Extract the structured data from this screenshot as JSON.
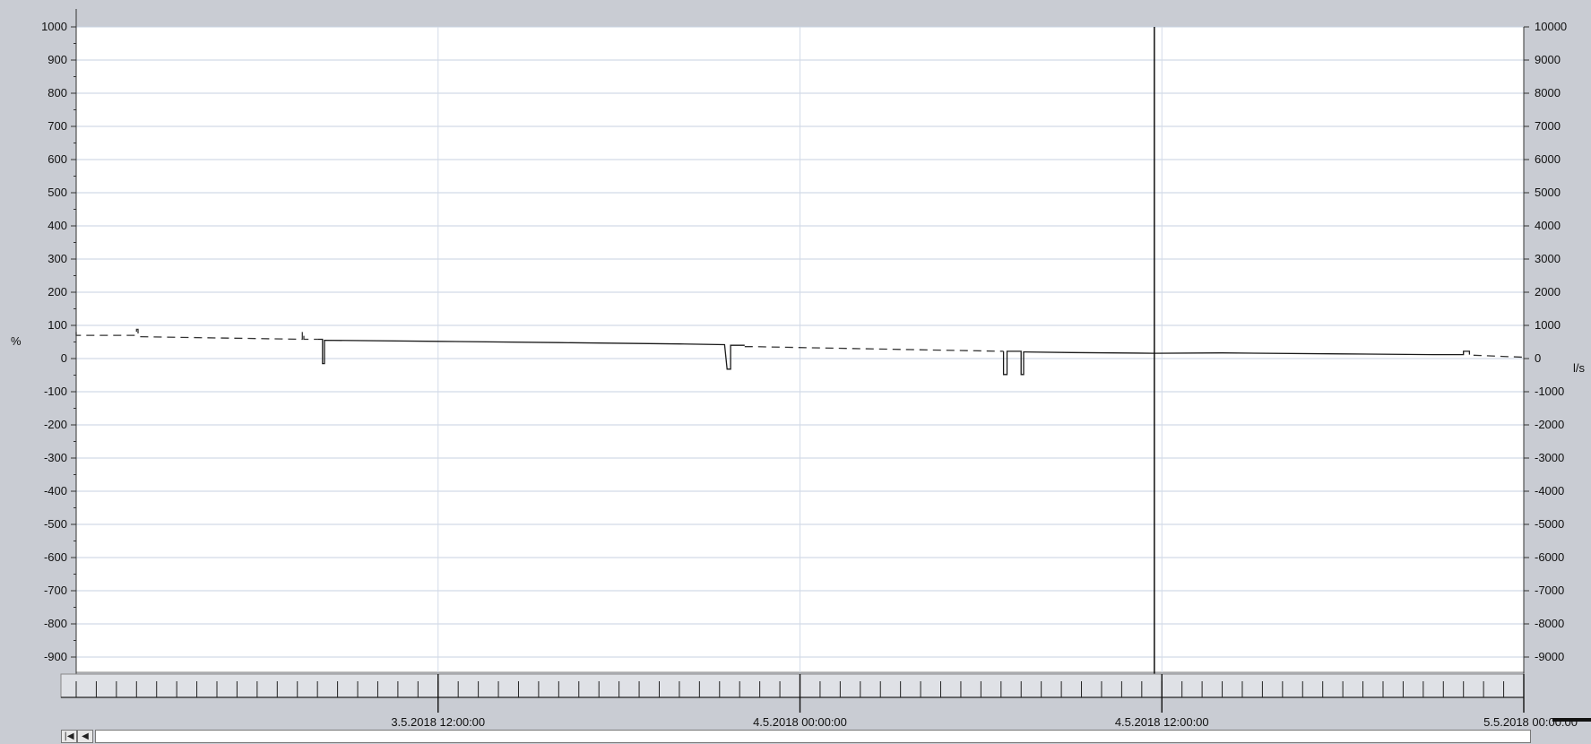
{
  "chart_data": {
    "type": "line",
    "title": "",
    "x_range": [
      "3.5.2018 00:00:00",
      "5.5.2018 00:00:00"
    ],
    "x_ticks": [
      "3.5.2018 12:00:00",
      "4.5.2018 00:00:00",
      "4.5.2018 12:00:00",
      "5.5.2018 00:00:00"
    ],
    "cursor_x": "4.5.2018 11:45:00",
    "y_left": {
      "label": "%",
      "range": [
        -1000,
        1000
      ],
      "ticks": [
        1000,
        900,
        800,
        700,
        600,
        500,
        400,
        300,
        200,
        100,
        0,
        -100,
        -200,
        -300,
        -400,
        -500,
        -600,
        -700,
        -800,
        -900
      ]
    },
    "y_right": {
      "label": "l/s",
      "range": [
        -10000,
        10000
      ],
      "ticks": [
        10000,
        9000,
        8000,
        7000,
        6000,
        5000,
        4000,
        3000,
        2000,
        1000,
        0,
        -1000,
        -2000,
        -3000,
        -4000,
        -5000,
        -6000,
        -7000,
        -8000,
        -9000
      ]
    },
    "grid": true,
    "series": [
      {
        "axis": "left",
        "style": "solid",
        "color": "#1a1a1a",
        "points": [
          [
            "3.5.2018 08:00:00",
            58
          ],
          [
            "3.5.2018 08:10:00",
            58
          ],
          [
            "3.5.2018 08:10:00",
            -15
          ],
          [
            "3.5.2018 08:14:00",
            -15
          ],
          [
            "3.5.2018 08:14:00",
            55
          ],
          [
            "3.5.2018 12:00:00",
            52
          ],
          [
            "3.5.2018 16:00:00",
            48
          ],
          [
            "3.5.2018 20:00:00",
            44
          ],
          [
            "3.5.2018 21:30:00",
            42
          ],
          [
            "3.5.2018 21:35:00",
            -32
          ],
          [
            "3.5.2018 21:42:00",
            -32
          ],
          [
            "3.5.2018 21:42:00",
            40
          ],
          [
            "3.5.2018 22:10:00",
            40
          ]
        ]
      },
      {
        "axis": "left",
        "style": "solid",
        "color": "#1a1a1a",
        "points": [
          [
            "4.5.2018 06:45:00",
            22
          ],
          [
            "4.5.2018 06:45:00",
            -48
          ],
          [
            "4.5.2018 06:52:00",
            -48
          ],
          [
            "4.5.2018 06:52:00",
            22
          ],
          [
            "4.5.2018 07:20:00",
            22
          ],
          [
            "4.5.2018 07:20:00",
            -48
          ],
          [
            "4.5.2018 07:25:00",
            -48
          ],
          [
            "4.5.2018 07:25:00",
            20
          ],
          [
            "4.5.2018 09:00:00",
            18
          ],
          [
            "4.5.2018 11:45:00",
            16
          ],
          [
            "4.5.2018 14:00:00",
            17
          ],
          [
            "4.5.2018 18:00:00",
            14
          ],
          [
            "4.5.2018 21:00:00",
            12
          ],
          [
            "4.5.2018 22:00:00",
            12
          ],
          [
            "4.5.2018 22:00:00",
            22
          ],
          [
            "4.5.2018 22:12:00",
            22
          ],
          [
            "4.5.2018 22:12:00",
            12
          ]
        ]
      },
      {
        "axis": "left",
        "style": "dashed",
        "color": "#333333",
        "points": [
          [
            "3.5.2018 00:00:00",
            80
          ],
          [
            "3.5.2018 00:00:00",
            70
          ],
          [
            "3.5.2018 02:00:00",
            70
          ],
          [
            "3.5.2018 02:00:00",
            88
          ],
          [
            "3.5.2018 02:03:00",
            88
          ],
          [
            "3.5.2018 02:03:00",
            66
          ],
          [
            "3.5.2018 07:30:00",
            58
          ],
          [
            "3.5.2018 07:30:00",
            80
          ],
          [
            "3.5.2018 07:33:00",
            80
          ],
          [
            "3.5.2018 07:33:00",
            58
          ],
          [
            "3.5.2018 08:00:00",
            58
          ]
        ]
      },
      {
        "axis": "left",
        "style": "dashed",
        "color": "#333333",
        "points": [
          [
            "3.5.2018 22:10:00",
            36
          ],
          [
            "3.5.2018 22:30:00",
            36
          ],
          [
            "3.5.2018 23:30:00",
            34
          ],
          [
            "4.5.2018 03:00:00",
            28
          ],
          [
            "4.5.2018 06:45:00",
            22
          ]
        ]
      },
      {
        "axis": "left",
        "style": "dashed",
        "color": "#333333",
        "points": [
          [
            "4.5.2018 22:20:00",
            10
          ],
          [
            "4.5.2018 23:59:00",
            4
          ]
        ]
      }
    ]
  },
  "navigator": {
    "first_button": "|◀",
    "prev_button": "◀"
  }
}
